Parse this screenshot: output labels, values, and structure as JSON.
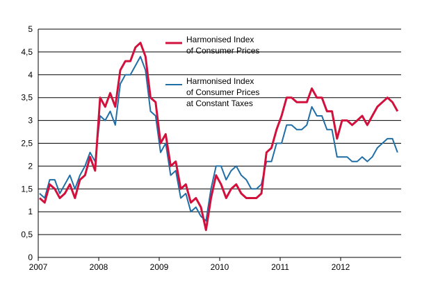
{
  "chart_data": {
    "type": "line",
    "categories": [
      "2007",
      null,
      null,
      null,
      null,
      null,
      null,
      null,
      null,
      null,
      null,
      null,
      "2008",
      null,
      null,
      null,
      null,
      null,
      null,
      null,
      null,
      null,
      null,
      null,
      "2009",
      null,
      null,
      null,
      null,
      null,
      null,
      null,
      null,
      null,
      null,
      null,
      "2010",
      null,
      null,
      null,
      null,
      null,
      null,
      null,
      null,
      null,
      null,
      null,
      "2011",
      null,
      null,
      null,
      null,
      null,
      null,
      null,
      null,
      null,
      null,
      null,
      "2012",
      null,
      null,
      null,
      null,
      null,
      null,
      null,
      null,
      null,
      null,
      null
    ],
    "series": [
      {
        "name": "Harmonised Index\nof Consumer Prices",
        "color": "#d2103c",
        "values": [
          1.3,
          1.2,
          1.6,
          1.5,
          1.3,
          1.4,
          1.6,
          1.3,
          1.7,
          1.8,
          2.2,
          1.9,
          3.5,
          3.3,
          3.6,
          3.3,
          4.1,
          4.3,
          4.3,
          4.6,
          4.7,
          4.4,
          3.5,
          3.4,
          2.5,
          2.7,
          2.0,
          2.1,
          1.5,
          1.6,
          1.2,
          1.3,
          1.1,
          0.6,
          1.3,
          1.8,
          1.6,
          1.3,
          1.5,
          1.6,
          1.4,
          1.3,
          1.3,
          1.3,
          1.4,
          2.3,
          2.4,
          2.8,
          3.1,
          3.5,
          3.5,
          3.4,
          3.4,
          3.4,
          3.7,
          3.5,
          3.5,
          3.2,
          3.2,
          2.6,
          3.0,
          3.0,
          2.9,
          3.0,
          3.1,
          2.9,
          3.1,
          3.3,
          3.4,
          3.5,
          3.4,
          3.2
        ]
      },
      {
        "name": "Harmonised Index\nof Consumer Prices\nat Constant Taxes",
        "color": "#1f6ea6",
        "values": [
          1.4,
          1.3,
          1.7,
          1.7,
          1.4,
          1.6,
          1.8,
          1.5,
          1.8,
          2.0,
          2.3,
          2.1,
          3.1,
          3.0,
          3.2,
          2.9,
          3.8,
          4.0,
          4.0,
          4.2,
          4.4,
          4.1,
          3.2,
          3.1,
          2.3,
          2.5,
          1.8,
          1.9,
          1.3,
          1.4,
          1.0,
          1.1,
          0.9,
          0.8,
          1.5,
          2.0,
          2.0,
          1.7,
          1.9,
          2.0,
          1.8,
          1.7,
          1.5,
          1.5,
          1.6,
          2.1,
          2.1,
          2.5,
          2.5,
          2.9,
          2.9,
          2.8,
          2.8,
          2.9,
          3.3,
          3.1,
          3.1,
          2.8,
          2.8,
          2.2,
          2.2,
          2.2,
          2.1,
          2.1,
          2.2,
          2.1,
          2.2,
          2.4,
          2.5,
          2.6,
          2.6,
          2.3
        ]
      }
    ],
    "ylim": [
      0,
      5
    ],
    "yticks": [
      0,
      {
        "value": 0.5,
        "label": "0,5"
      },
      1,
      {
        "value": 1.5,
        "label": "1,5"
      },
      2,
      {
        "value": 2.5,
        "label": "2,5"
      },
      3,
      {
        "value": 3.5,
        "label": "3,5"
      },
      4,
      {
        "value": 4.5,
        "label": "4,5"
      },
      5
    ],
    "grid": true
  }
}
